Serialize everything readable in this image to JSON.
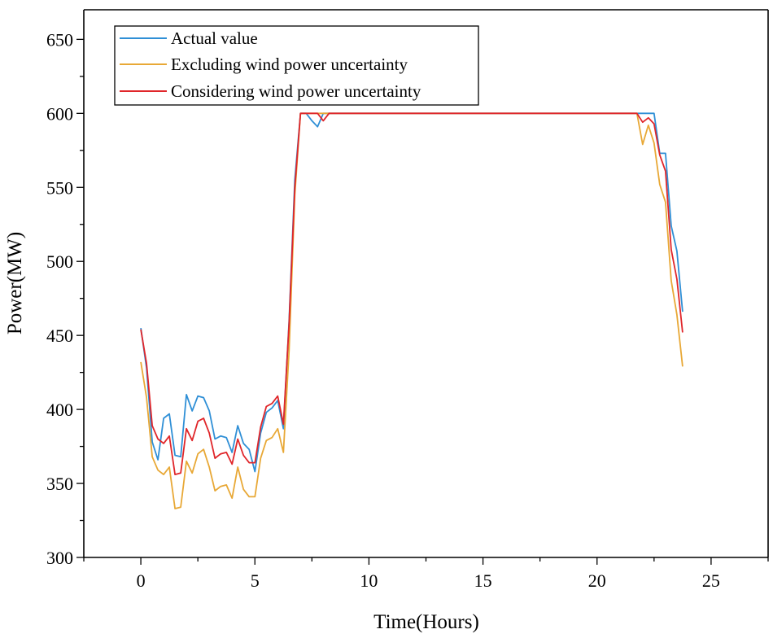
{
  "chart_data": {
    "type": "line",
    "title": "",
    "xlabel": "Time(Hours)",
    "ylabel": "Power(MW)",
    "xlim": [
      -2.5,
      27.5
    ],
    "ylim": [
      300,
      670
    ],
    "xticks": [
      0,
      5,
      10,
      15,
      20,
      25
    ],
    "yticks": [
      300,
      350,
      400,
      450,
      500,
      550,
      600,
      650
    ],
    "legend_position": "top-left",
    "series": [
      {
        "name": "Actual value",
        "color": "#2f8fd6",
        "x": [
          0,
          0.25,
          0.5,
          0.75,
          1,
          1.25,
          1.5,
          1.75,
          2,
          2.25,
          2.5,
          2.75,
          3,
          3.25,
          3.5,
          3.75,
          4,
          4.25,
          4.5,
          4.75,
          5,
          5.25,
          5.5,
          5.75,
          6,
          6.25,
          6.5,
          6.75,
          7,
          7.25,
          7.5,
          7.75,
          8,
          8.25,
          8.5,
          9,
          10,
          11,
          12,
          13,
          14,
          15,
          16,
          17,
          18,
          19,
          20,
          21,
          21.75,
          22,
          22.25,
          22.5,
          22.75,
          23,
          23.25,
          23.5,
          23.75
        ],
        "values": [
          455,
          428,
          378,
          366,
          394,
          397,
          369,
          368,
          410,
          399,
          409,
          408,
          399,
          380,
          382,
          381,
          371,
          389,
          377,
          373,
          358,
          384,
          398,
          401,
          406,
          387,
          460,
          555,
          600,
          600,
          595,
          591,
          600,
          600,
          600,
          600,
          600,
          600,
          600,
          600,
          600,
          600,
          600,
          600,
          600,
          600,
          600,
          600,
          600,
          600,
          600,
          600,
          573,
          573,
          524,
          507,
          466
        ]
      },
      {
        "name": "Excluding wind power uncertainty",
        "color": "#e8a836",
        "x": [
          0,
          0.25,
          0.5,
          0.75,
          1,
          1.25,
          1.5,
          1.75,
          2,
          2.25,
          2.5,
          2.75,
          3,
          3.25,
          3.5,
          3.75,
          4,
          4.25,
          4.5,
          4.75,
          5,
          5.25,
          5.5,
          5.75,
          6,
          6.25,
          6.5,
          6.75,
          7,
          7.25,
          7.5,
          7.75,
          8,
          8.25,
          8.5,
          9,
          10,
          11,
          12,
          13,
          14,
          15,
          16,
          17,
          18,
          19,
          20,
          21,
          21.75,
          22,
          22.25,
          22.5,
          22.75,
          23,
          23.25,
          23.5,
          23.75
        ],
        "values": [
          432,
          408,
          368,
          359,
          356,
          361,
          333,
          334,
          365,
          357,
          370,
          373,
          361,
          345,
          348,
          349,
          340,
          361,
          346,
          341,
          341,
          367,
          379,
          381,
          387,
          371,
          440,
          545,
          600,
          600,
          600,
          600,
          600,
          600,
          600,
          600,
          600,
          600,
          600,
          600,
          600,
          600,
          600,
          600,
          600,
          600,
          600,
          600,
          600,
          579,
          592,
          580,
          552,
          540,
          487,
          464,
          429
        ]
      },
      {
        "name": "Considering wind power uncertainty",
        "color": "#e0262a",
        "x": [
          0,
          0.25,
          0.5,
          0.75,
          1,
          1.25,
          1.5,
          1.75,
          2,
          2.25,
          2.5,
          2.75,
          3,
          3.25,
          3.5,
          3.75,
          4,
          4.25,
          4.5,
          4.75,
          5,
          5.25,
          5.5,
          5.75,
          6,
          6.25,
          6.5,
          6.75,
          7,
          7.25,
          7.5,
          7.75,
          8,
          8.25,
          8.5,
          9,
          10,
          11,
          12,
          13,
          14,
          15,
          16,
          17,
          18,
          19,
          20,
          21,
          21.75,
          22,
          22.25,
          22.5,
          22.75,
          23,
          23.25,
          23.5,
          23.75
        ],
        "values": [
          454,
          431,
          389,
          380,
          377,
          382,
          356,
          357,
          387,
          379,
          392,
          394,
          384,
          367,
          370,
          371,
          363,
          380,
          369,
          364,
          364,
          388,
          402,
          404,
          409,
          390,
          458,
          550,
          600,
          600,
          600,
          600,
          595,
          600,
          600,
          600,
          600,
          600,
          600,
          600,
          600,
          600,
          600,
          600,
          600,
          600,
          600,
          600,
          600,
          594,
          597,
          593,
          572,
          561,
          508,
          488,
          452
        ]
      }
    ]
  }
}
